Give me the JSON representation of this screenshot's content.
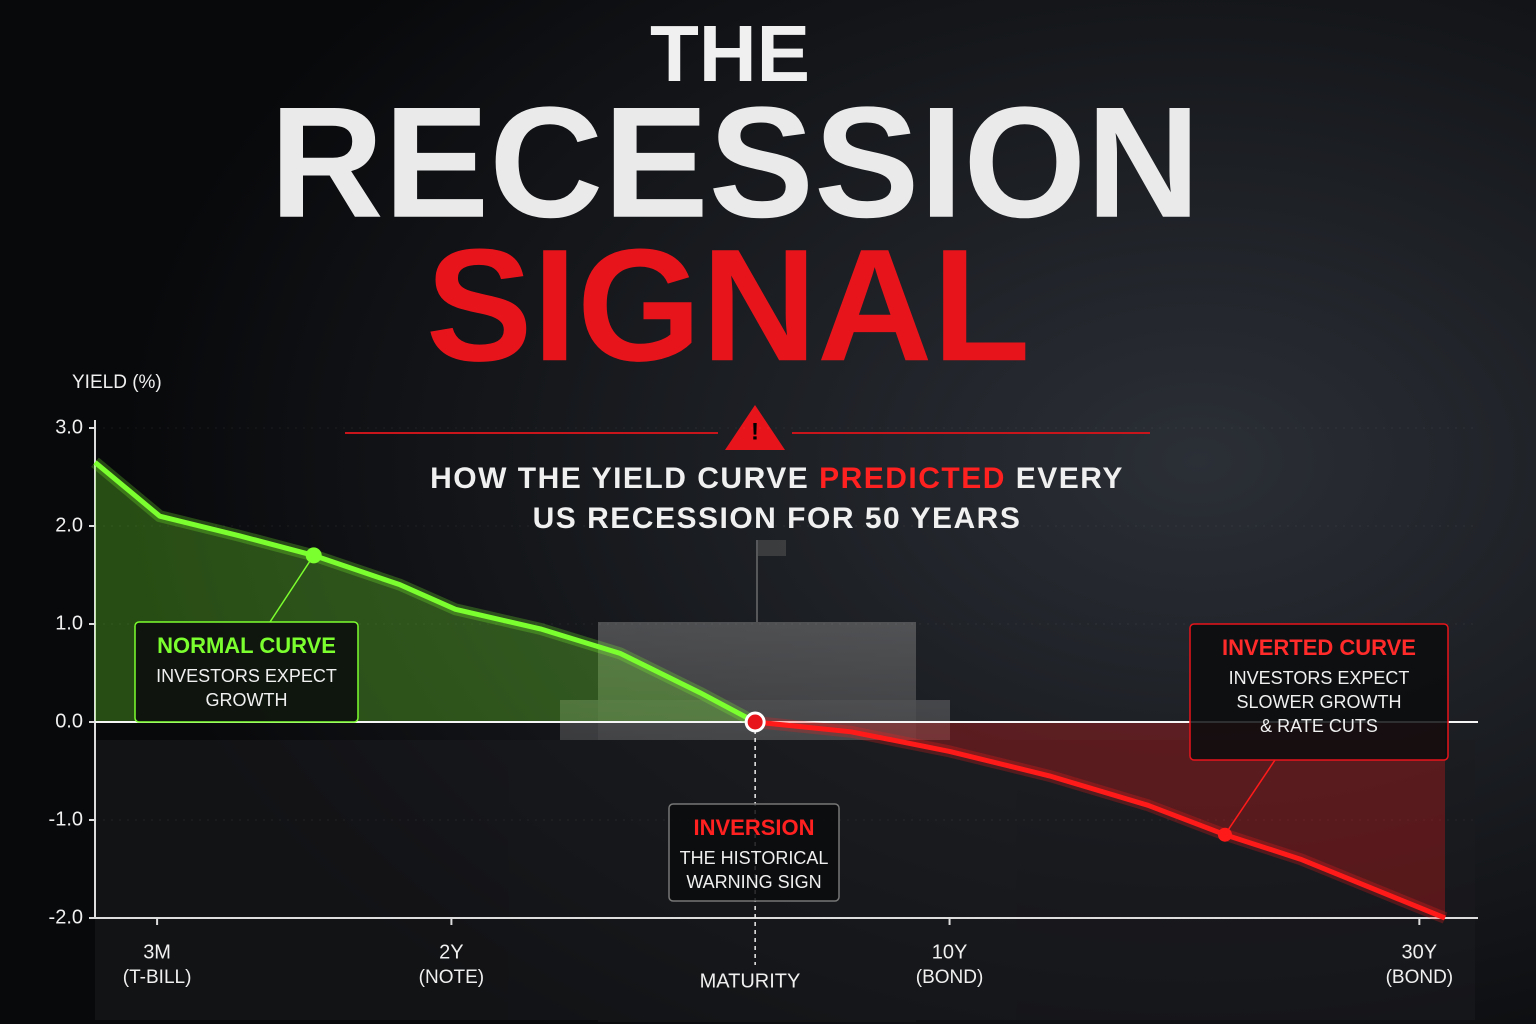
{
  "chart_data": {
    "type": "line",
    "title_parts": [
      "THE",
      "RECESSION",
      "SIGNAL"
    ],
    "subtitle_line1": [
      "HOW THE YIELD CURVE",
      "PREDICTED",
      "EVERY"
    ],
    "subtitle_line2": "US RECESSION FOR 50 YEARS",
    "ylabel": "YIELD (%)",
    "xlabel": "MATURITY",
    "ylim": [
      -2,
      3
    ],
    "yticks": [
      {
        "value": 3,
        "label": "3.0"
      },
      {
        "value": 2,
        "label": "2.0"
      },
      {
        "value": 1,
        "label": "1.0"
      },
      {
        "value": 0,
        "label": "0.0"
      },
      {
        "value": -1,
        "label": "-1.0"
      },
      {
        "value": -2,
        "label": "-2.0"
      }
    ],
    "xlim": [
      0,
      10
    ],
    "xticks": [
      {
        "value": 0.46,
        "label": "3M",
        "sublabel": "(T-BILL)"
      },
      {
        "value": 2.64,
        "label": "2Y",
        "sublabel": "(NOTE)"
      },
      {
        "value": 6.33,
        "label": "10Y",
        "sublabel": "(BOND)"
      },
      {
        "value": 9.81,
        "label": "30Y",
        "sublabel": "(BOND)"
      }
    ],
    "series": [
      {
        "name": "Normal curve",
        "color": "#7cff2e",
        "x": [
          0,
          0.48,
          1.07,
          1.62,
          2.26,
          2.67,
          3.3,
          3.89,
          4.48,
          4.89
        ],
        "values": [
          2.65,
          2.1,
          1.9,
          1.7,
          1.4,
          1.15,
          0.95,
          0.7,
          0.3,
          0
        ]
      },
      {
        "name": "Inverted curve",
        "color": "#ff1a1a",
        "x": [
          4.89,
          5.6,
          6.33,
          7.07,
          7.8,
          8.37,
          8.93,
          10
        ],
        "values": [
          0,
          -0.1,
          -0.3,
          -0.55,
          -0.85,
          -1.15,
          -1.4,
          -2.0
        ]
      }
    ],
    "annotations": [
      {
        "title": "NORMAL CURVE",
        "lines": [
          "INVESTORS EXPECT",
          "GROWTH"
        ]
      },
      {
        "title": "INVERSION",
        "lines": [
          "THE HISTORICAL",
          "WARNING SIGN"
        ]
      },
      {
        "title": "INVERTED CURVE",
        "lines": [
          "INVESTORS EXPECT",
          "SLOWER GROWTH",
          "& RATE CUTS"
        ]
      }
    ]
  }
}
